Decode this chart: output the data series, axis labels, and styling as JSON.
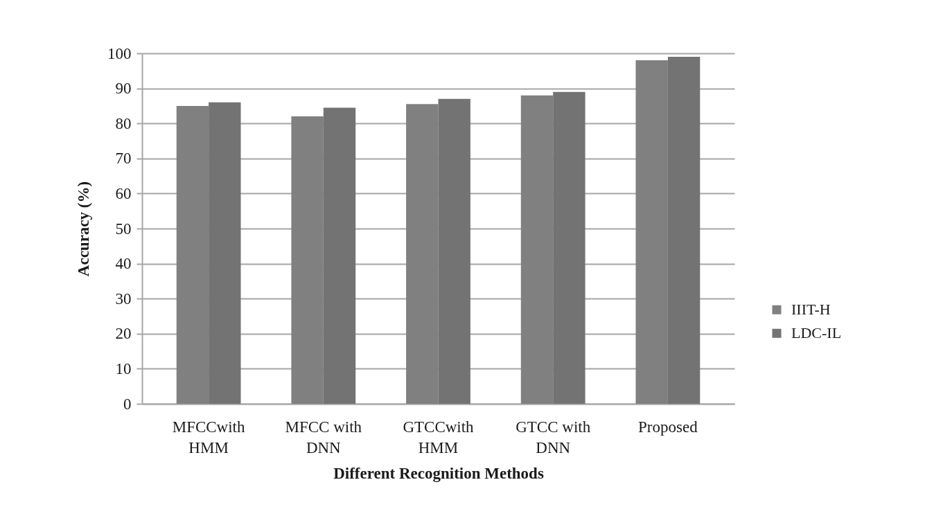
{
  "chart_data": {
    "type": "bar",
    "categories": [
      "MFCCwith HMM",
      "MFCC with DNN",
      "GTCCwith HMM",
      "GTCC with DNN",
      "Proposed"
    ],
    "series": [
      {
        "name": "IIIT-H",
        "color": "#808080",
        "values": [
          85,
          82,
          85.5,
          88,
          98
        ]
      },
      {
        "name": "LDC-IL",
        "color": "#737373",
        "values": [
          86,
          84.5,
          87,
          89,
          99
        ]
      }
    ],
    "xlabel": "Different Recognition Methods",
    "ylabel": "Accuracy (%)",
    "ylim": [
      0,
      100
    ],
    "yticks": [
      0,
      10,
      20,
      30,
      40,
      50,
      60,
      70,
      80,
      90,
      100
    ],
    "grid": "y",
    "legend": "right"
  }
}
